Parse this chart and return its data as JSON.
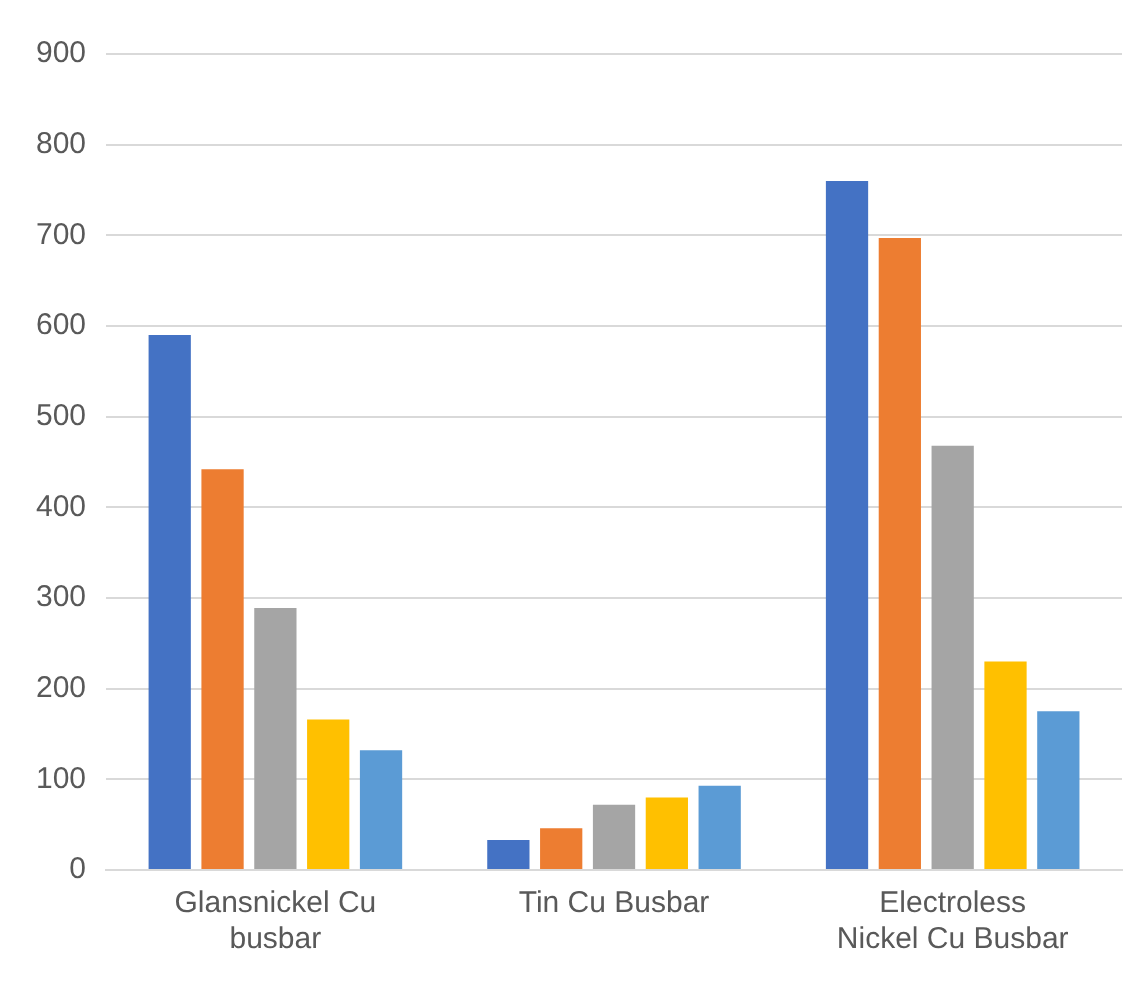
{
  "chart_data": {
    "type": "bar",
    "categories": [
      "Glansnickel Cu busbar",
      "Tin Cu Busbar",
      "Electroless Nickel Cu Busbar"
    ],
    "series": [
      {
        "color": "#4472c4",
        "values": [
          590,
          33,
          760
        ]
      },
      {
        "color": "#ed7d31",
        "values": [
          442,
          46,
          697
        ]
      },
      {
        "color": "#a5a5a5",
        "values": [
          289,
          72,
          468
        ]
      },
      {
        "color": "#ffc000",
        "values": [
          166,
          80,
          230
        ]
      },
      {
        "color": "#5b9bd5",
        "values": [
          132,
          93,
          175
        ]
      }
    ],
    "ylim": [
      0,
      900
    ],
    "yticks": [
      0,
      100,
      200,
      300,
      400,
      500,
      600,
      700,
      800,
      900
    ],
    "grid": "y",
    "legend": false
  }
}
